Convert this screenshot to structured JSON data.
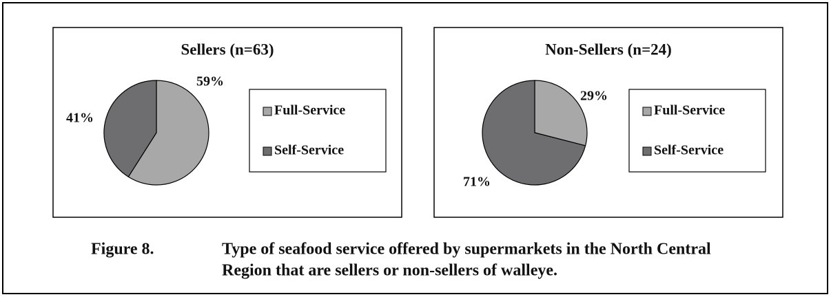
{
  "chart_data": [
    {
      "type": "pie",
      "title": "Sellers (n=63)",
      "categories": [
        "Full-Service",
        "Self-Service"
      ],
      "values": [
        59,
        41
      ],
      "value_labels": [
        "59%",
        "41%"
      ],
      "colors": [
        "#a8a8a8",
        "#6e6e70"
      ],
      "legend": "right"
    },
    {
      "type": "pie",
      "title": "Non-Sellers (n=24)",
      "categories": [
        "Full-Service",
        "Self-Service"
      ],
      "values": [
        29,
        71
      ],
      "value_labels": [
        "29%",
        "71%"
      ],
      "colors": [
        "#a8a8a8",
        "#6e6e70"
      ],
      "legend": "right"
    }
  ],
  "caption": {
    "label": "Figure 8.",
    "lines": [
      "Type of seafood service offered by supermarkets in the North Central",
      "Region that are sellers or non-sellers of walleye."
    ]
  }
}
